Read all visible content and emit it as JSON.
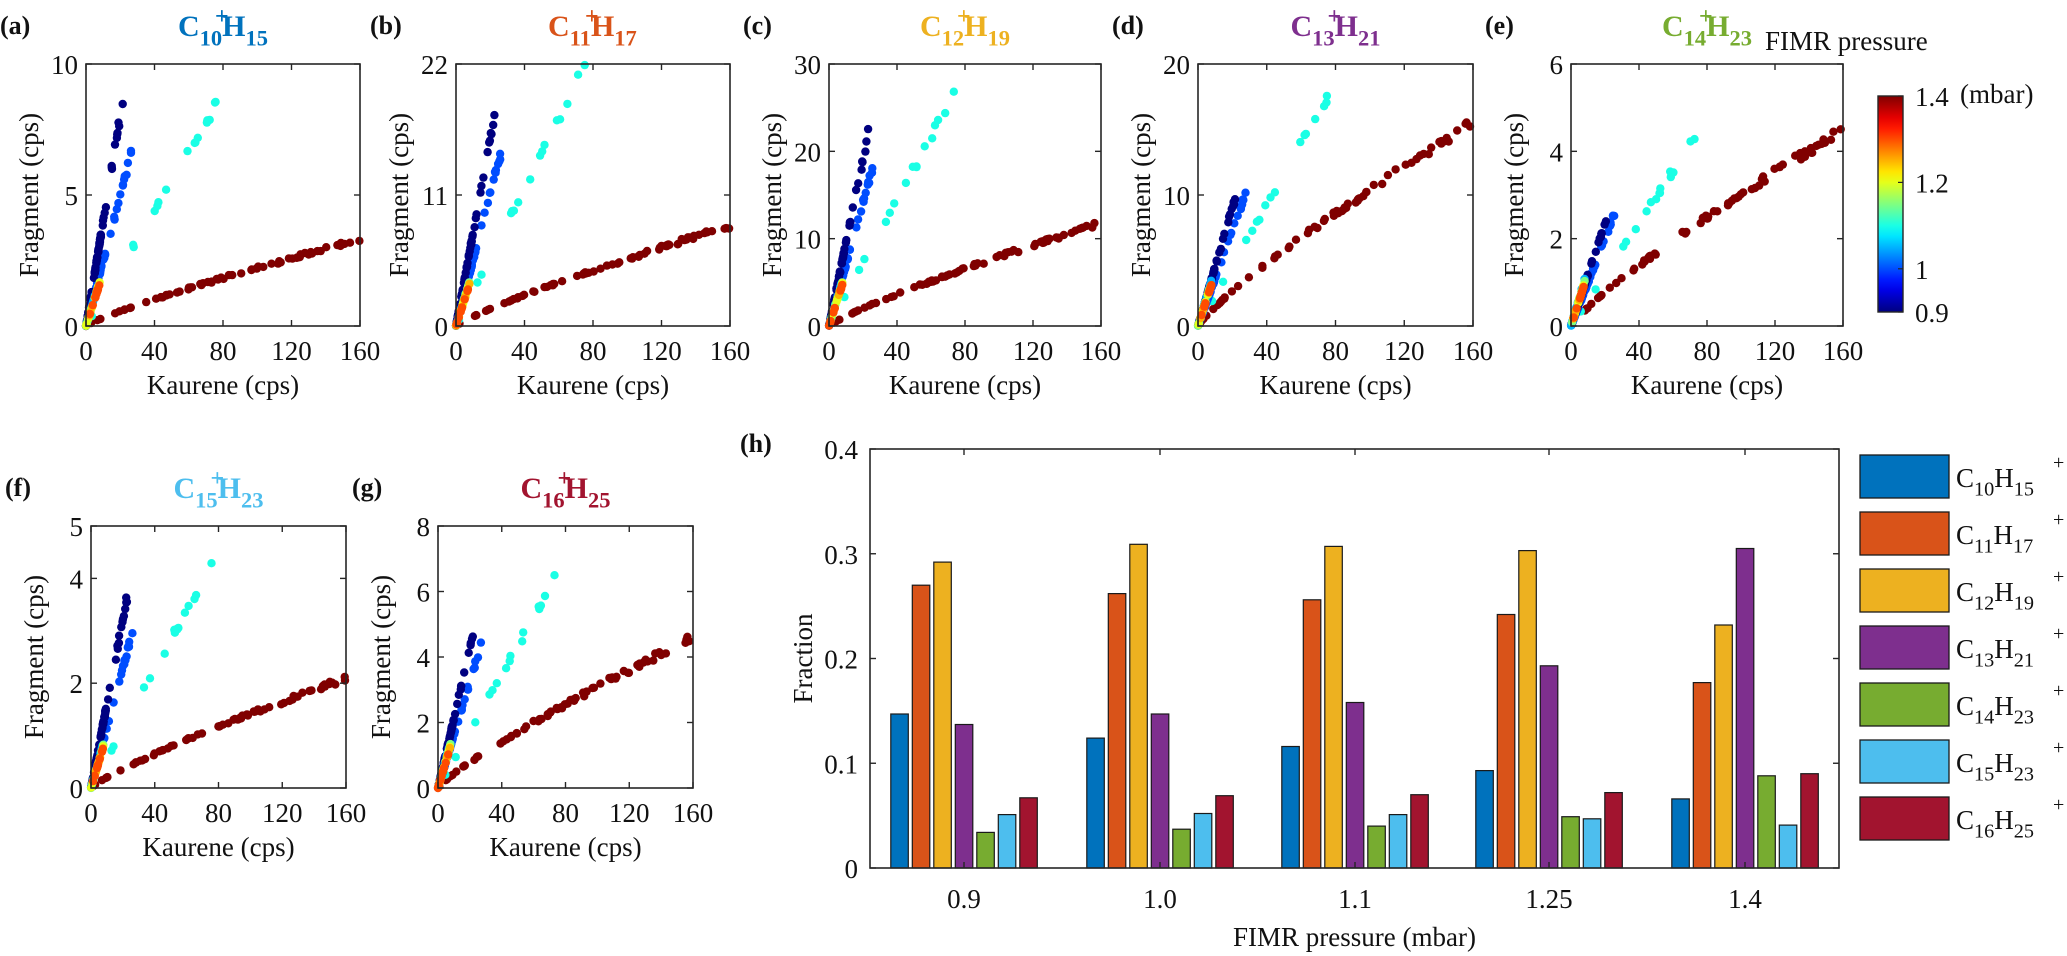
{
  "chart_data": [
    {
      "panel": "(a)",
      "type": "scatter",
      "title": {
        "base": "C",
        "n1": "10",
        "mid": "H",
        "n2": "15",
        "charge": "+"
      },
      "title_color": "#0072BD",
      "xlabel": "Kaurene (cps)",
      "ylabel": "Fragment (cps)",
      "xlim": [
        0,
        160
      ],
      "ylim": [
        0,
        10
      ],
      "xticks": [
        "0",
        "40",
        "80",
        "120",
        "160"
      ],
      "yticks": [
        "0",
        "5",
        "10"
      ],
      "series": [
        {
          "pressure_mbar": 0.9,
          "x_max": 22,
          "y_max": 8.8
        },
        {
          "pressure_mbar": 1.0,
          "x_max": 27,
          "y_max": 6.7
        },
        {
          "pressure_mbar": 1.1,
          "x_max": 76,
          "y_max": 8.4
        },
        {
          "pressure_mbar": 1.4,
          "x_max": 160,
          "y_max": 3.3
        }
      ]
    },
    {
      "panel": "(b)",
      "type": "scatter",
      "title": {
        "base": "C",
        "n1": "11",
        "mid": "H",
        "n2": "17",
        "charge": "+"
      },
      "title_color": "#D95319",
      "xlabel": "Kaurene (cps)",
      "ylabel": "Fragment (cps)",
      "xlim": [
        0,
        160
      ],
      "ylim": [
        0,
        22
      ],
      "xticks": [
        "0",
        "40",
        "80",
        "120",
        "160"
      ],
      "yticks": [
        "0",
        "11",
        "22"
      ],
      "series": [
        {
          "pressure_mbar": 0.9,
          "x_max": 23,
          "y_max": 18.0
        },
        {
          "pressure_mbar": 1.0,
          "x_max": 27,
          "y_max": 15.0
        },
        {
          "pressure_mbar": 1.1,
          "x_max": 76,
          "y_max": 22.0
        },
        {
          "pressure_mbar": 1.4,
          "x_max": 160,
          "y_max": 8.4
        }
      ]
    },
    {
      "panel": "(c)",
      "type": "scatter",
      "title": {
        "base": "C",
        "n1": "12",
        "mid": "H",
        "n2": "19",
        "charge": "+"
      },
      "title_color": "#EDB120",
      "xlabel": "Kaurene (cps)",
      "ylabel": "Fragment (cps)",
      "xlim": [
        0,
        160
      ],
      "ylim": [
        0,
        30
      ],
      "xticks": [
        "0",
        "40",
        "80",
        "120",
        "160"
      ],
      "yticks": [
        "0",
        "10",
        "20",
        "30"
      ],
      "series": [
        {
          "pressure_mbar": 0.9,
          "x_max": 23,
          "y_max": 22.0
        },
        {
          "pressure_mbar": 1.0,
          "x_max": 27,
          "y_max": 19.0
        },
        {
          "pressure_mbar": 1.1,
          "x_max": 76,
          "y_max": 27.5
        },
        {
          "pressure_mbar": 1.4,
          "x_max": 160,
          "y_max": 11.8
        }
      ]
    },
    {
      "panel": "(d)",
      "type": "scatter",
      "title": {
        "base": "C",
        "n1": "13",
        "mid": "H",
        "n2": "21",
        "charge": "+"
      },
      "title_color": "#7E2F8E",
      "xlabel": "Kaurene (cps)",
      "ylabel": "Fragment (cps)",
      "xlim": [
        0,
        160
      ],
      "ylim": [
        0,
        20
      ],
      "xticks": [
        "0",
        "40",
        "80",
        "120",
        "160"
      ],
      "yticks": [
        "0",
        "10",
        "20"
      ],
      "series": [
        {
          "pressure_mbar": 0.9,
          "x_max": 23,
          "y_max": 10.4
        },
        {
          "pressure_mbar": 1.0,
          "x_max": 28,
          "y_max": 10.2
        },
        {
          "pressure_mbar": 1.1,
          "x_max": 76,
          "y_max": 17.5
        },
        {
          "pressure_mbar": 1.4,
          "x_max": 160,
          "y_max": 15.5
        }
      ]
    },
    {
      "panel": "(e)",
      "type": "scatter",
      "title": {
        "base": "C",
        "n1": "14",
        "mid": "H",
        "n2": "23",
        "charge": "+"
      },
      "title_color": "#77AC30",
      "xlabel": "Kaurene (cps)",
      "ylabel": "Fragment (cps)",
      "xlim": [
        0,
        160
      ],
      "ylim": [
        0,
        6
      ],
      "xticks": [
        "0",
        "40",
        "80",
        "120",
        "160"
      ],
      "yticks": [
        "0",
        "2",
        "4",
        "6"
      ],
      "series": [
        {
          "pressure_mbar": 0.9,
          "x_max": 22,
          "y_max": 2.6
        },
        {
          "pressure_mbar": 1.0,
          "x_max": 26,
          "y_max": 2.6
        },
        {
          "pressure_mbar": 1.1,
          "x_max": 76,
          "y_max": 4.5
        },
        {
          "pressure_mbar": 1.4,
          "x_max": 160,
          "y_max": 4.5
        }
      ]
    },
    {
      "panel": "(f)",
      "type": "scatter",
      "title": {
        "base": "C",
        "n1": "15",
        "mid": "H",
        "n2": "23",
        "charge": "+"
      },
      "title_color": "#4DBEEE",
      "xlabel": "Kaurene (cps)",
      "ylabel": "Fragment (cps)",
      "xlim": [
        0,
        160
      ],
      "ylim": [
        0,
        5
      ],
      "xticks": [
        "0",
        "40",
        "80",
        "120",
        "160"
      ],
      "yticks": [
        "0",
        "2",
        "4",
        "5"
      ],
      "series": [
        {
          "pressure_mbar": 0.9,
          "x_max": 23,
          "y_max": 3.7
        },
        {
          "pressure_mbar": 1.0,
          "x_max": 27,
          "y_max": 3.1
        },
        {
          "pressure_mbar": 1.1,
          "x_max": 76,
          "y_max": 4.3
        },
        {
          "pressure_mbar": 1.4,
          "x_max": 160,
          "y_max": 2.1
        }
      ]
    },
    {
      "panel": "(g)",
      "type": "scatter",
      "title": {
        "base": "C",
        "n1": "16",
        "mid": "H",
        "n2": "25",
        "charge": "+"
      },
      "title_color": "#A2142F",
      "xlabel": "Kaurene (cps)",
      "ylabel": "Fragment (cps)",
      "xlim": [
        0,
        160
      ],
      "ylim": [
        0,
        8
      ],
      "xticks": [
        "0",
        "40",
        "80",
        "120",
        "160"
      ],
      "yticks": [
        "0",
        "2",
        "4",
        "6",
        "8"
      ],
      "series": [
        {
          "pressure_mbar": 0.9,
          "x_max": 23,
          "y_max": 4.9
        },
        {
          "pressure_mbar": 1.0,
          "x_max": 27,
          "y_max": 4.4
        },
        {
          "pressure_mbar": 1.1,
          "x_max": 76,
          "y_max": 6.6
        },
        {
          "pressure_mbar": 1.4,
          "x_max": 160,
          "y_max": 4.6
        }
      ]
    },
    {
      "panel": "(h)",
      "type": "bar",
      "xlabel": "FIMR pressure (mbar)",
      "ylabel": "Fraction",
      "categories": [
        "0.9",
        "1.0",
        "1.1",
        "1.25",
        "1.4"
      ],
      "ylim": [
        0,
        0.4
      ],
      "yticks": [
        "0",
        "0.1",
        "0.2",
        "0.3",
        "0.4"
      ],
      "legend_position": "right-outside",
      "series": [
        {
          "name": {
            "base": "C",
            "n1": "10",
            "mid": "H",
            "n2": "15",
            "charge": "+"
          },
          "color": "#0072BD",
          "values": [
            0.147,
            0.124,
            0.116,
            0.093,
            0.066
          ]
        },
        {
          "name": {
            "base": "C",
            "n1": "11",
            "mid": "H",
            "n2": "17",
            "charge": "+"
          },
          "color": "#D95319",
          "values": [
            0.27,
            0.262,
            0.256,
            0.242,
            0.177
          ]
        },
        {
          "name": {
            "base": "C",
            "n1": "12",
            "mid": "H",
            "n2": "19",
            "charge": "+"
          },
          "color": "#EDB120",
          "values": [
            0.292,
            0.309,
            0.307,
            0.303,
            0.232
          ]
        },
        {
          "name": {
            "base": "C",
            "n1": "13",
            "mid": "H",
            "n2": "21",
            "charge": "+"
          },
          "color": "#7E2F8E",
          "values": [
            0.137,
            0.147,
            0.158,
            0.193,
            0.305
          ]
        },
        {
          "name": {
            "base": "C",
            "n1": "14",
            "mid": "H",
            "n2": "23",
            "charge": "+"
          },
          "color": "#77AC30",
          "values": [
            0.034,
            0.037,
            0.04,
            0.049,
            0.088
          ]
        },
        {
          "name": {
            "base": "C",
            "n1": "15",
            "mid": "H",
            "n2": "23",
            "charge": "+"
          },
          "color": "#4DBEEE",
          "values": [
            0.051,
            0.052,
            0.051,
            0.047,
            0.041
          ]
        },
        {
          "name": {
            "base": "C",
            "n1": "16",
            "mid": "H",
            "n2": "25",
            "charge": "+"
          },
          "color": "#A2142F",
          "values": [
            0.067,
            0.069,
            0.07,
            0.072,
            0.09
          ]
        }
      ]
    }
  ],
  "colorbar": {
    "title": "FIMR pressure",
    "unit": "(mbar)",
    "range": [
      0.9,
      1.4
    ],
    "ticks": [
      "0.9",
      "1",
      "1.2",
      "1.4"
    ],
    "colormap": "jet"
  }
}
